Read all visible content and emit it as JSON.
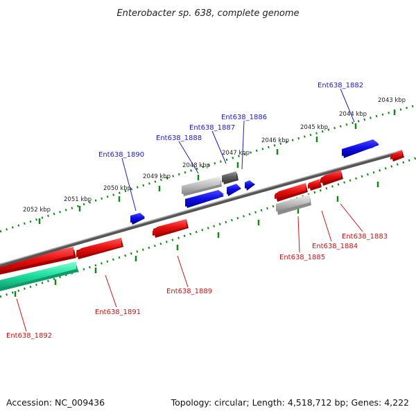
{
  "title": "Enterobacter sp. 638, complete genome",
  "footer": {
    "accession": "Accession: NC_009436",
    "summary": "Topology: circular; Length: 4,518,712 bp; Genes: 4,222"
  },
  "colors": {
    "forward_label": "#1a1acc",
    "reverse_label": "#cc1111",
    "forward_gene": "#1010e0",
    "reverse_gene": "#e01010",
    "rna_gene": "#20e0a0",
    "pseudo_gene": "#b8b8b8",
    "dark_gene": "#6a6a6a",
    "tick": "#118811",
    "backbone": "#7a7a7a"
  },
  "kbp_ticks": [
    "2052 kbp",
    "2051 kbp",
    "2050 kbp",
    "2049 kbp",
    "2048 kbp",
    "2047 kbp",
    "2046 kbp",
    "2045 kbp",
    "2044 kbp",
    "2043 kbp"
  ],
  "forward_labels": [
    "Ent638_1890",
    "Ent638_1888",
    "Ent638_1887",
    "Ent638_1886",
    "Ent638_1882"
  ],
  "reverse_labels": [
    "Ent638_1892",
    "Ent638_1891",
    "Ent638_1889",
    "Ent638_1885",
    "Ent638_1884",
    "Ent638_1883"
  ]
}
